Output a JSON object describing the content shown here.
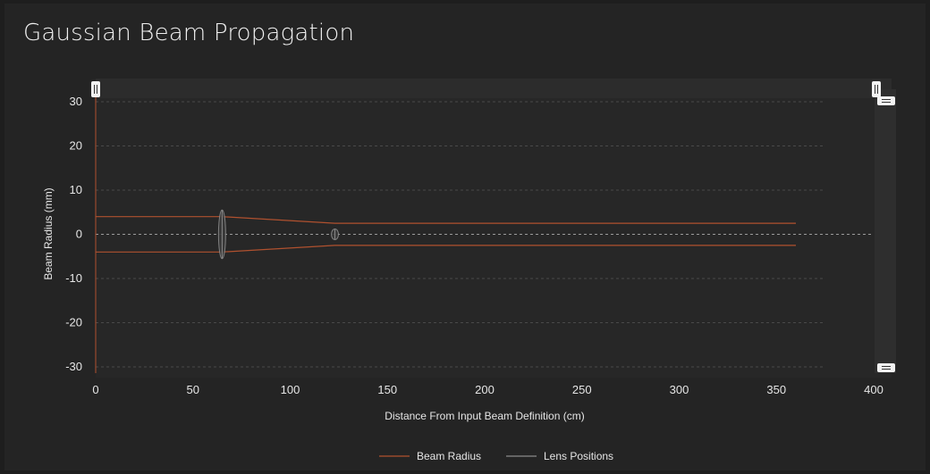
{
  "page": {
    "title": "Gaussian Beam Propagation"
  },
  "chart_data": {
    "type": "line",
    "title": "Gaussian Beam Propagation",
    "xlabel": "Distance From Input Beam Definition (cm)",
    "ylabel": "Beam Radius (mm)",
    "xlim": [
      0,
      400
    ],
    "ylim": [
      -30,
      30
    ],
    "x_ticks": [
      "0",
      "50",
      "100",
      "150",
      "200",
      "250",
      "300",
      "350",
      "400"
    ],
    "y_ticks": [
      "30",
      "20",
      "10",
      "0",
      "-10",
      "-20",
      "-30"
    ],
    "grid": true,
    "legend_position": "bottom-center",
    "colors": {
      "beam": "#b0512f",
      "lens": "#8a8a8a",
      "grid": "#4a4a4a",
      "zero": "#9a9a9a"
    },
    "series": [
      {
        "name": "Beam Radius",
        "x": [
          0,
          65,
          123,
          360
        ],
        "upper": [
          4,
          4,
          2.5,
          2.5
        ],
        "lower": [
          -4,
          -4,
          -2.5,
          -2.5
        ]
      },
      {
        "name": "Lens Positions",
        "x": [
          65,
          123
        ],
        "values": [
          [
            -5.5,
            5.5
          ],
          [
            -1.2,
            1.2
          ]
        ]
      }
    ],
    "legend": [
      "Beam Radius",
      "Lens Positions"
    ]
  }
}
